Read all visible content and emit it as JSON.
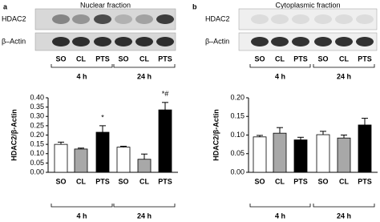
{
  "chart_data": [
    {
      "type": "bar",
      "panel": "a",
      "title": "Nuclear fraction",
      "blot_labels": [
        "HDAC2",
        "β–Actin"
      ],
      "y_label": "HDAC2/β-Actin",
      "categories": [
        "SO",
        "CL",
        "PTS",
        "SO",
        "CL",
        "PTS"
      ],
      "groups": [
        "4 h",
        "24 h"
      ],
      "values": [
        0.15,
        0.125,
        0.215,
        0.135,
        0.07,
        0.335
      ],
      "errors": [
        0.012,
        0.005,
        0.035,
        0.005,
        0.028,
        0.04
      ],
      "colors": [
        "#ffffff",
        "#a8a8a8",
        "#000000",
        "#ffffff",
        "#a8a8a8",
        "#000000"
      ],
      "annotations": [
        {
          "index": 2,
          "text": "*"
        },
        {
          "index": 5,
          "text": "*#"
        }
      ],
      "ylim": [
        0,
        0.4
      ],
      "yticks": [
        {
          "value": 0,
          "label": "0.00"
        },
        {
          "value": 0.05,
          "label": "0.05"
        },
        {
          "value": 0.1,
          "label": "0.10"
        },
        {
          "value": 0.15,
          "label": "0.15"
        },
        {
          "value": 0.2,
          "label": "0.20"
        },
        {
          "value": 0.25,
          "label": "0.25"
        },
        {
          "value": 0.3,
          "label": "0.30"
        },
        {
          "value": 0.35,
          "label": "0.35"
        },
        {
          "value": 0.4,
          "label": "0.40"
        }
      ]
    },
    {
      "type": "bar",
      "panel": "b",
      "title": "Cytoplasmic fraction",
      "blot_labels": [
        "HDAC2",
        "β–Actin"
      ],
      "y_label": "HDAC2/β-Actin",
      "categories": [
        "SO",
        "CL",
        "PTS",
        "SO",
        "CL",
        "PTS"
      ],
      "groups": [
        "4 h",
        "24 h"
      ],
      "values": [
        0.095,
        0.105,
        0.087,
        0.101,
        0.092,
        0.127
      ],
      "errors": [
        0.004,
        0.015,
        0.007,
        0.009,
        0.008,
        0.018
      ],
      "colors": [
        "#ffffff",
        "#a8a8a8",
        "#000000",
        "#ffffff",
        "#a8a8a8",
        "#000000"
      ],
      "annotations": [],
      "ylim": [
        0,
        0.2
      ],
      "yticks": [
        {
          "value": 0,
          "label": "0.00"
        },
        {
          "value": 0.05,
          "label": "0.05"
        },
        {
          "value": 0.1,
          "label": "0.10"
        },
        {
          "value": 0.15,
          "label": "0.15"
        },
        {
          "value": 0.2,
          "label": "0.20"
        }
      ]
    }
  ]
}
